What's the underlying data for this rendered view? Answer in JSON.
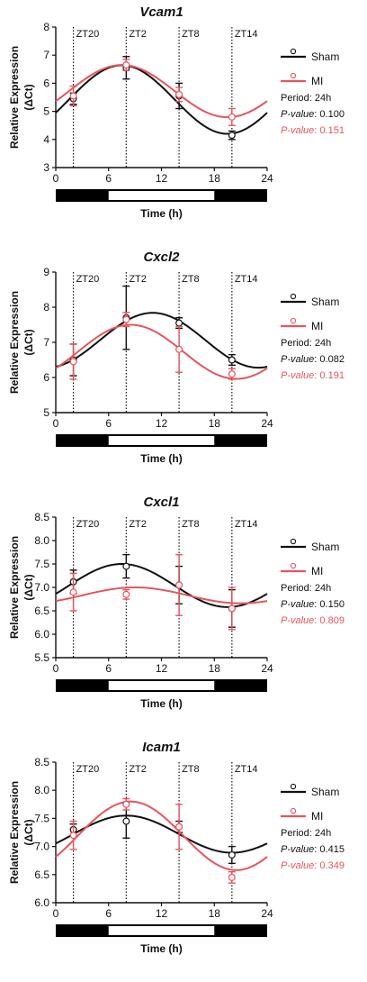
{
  "colors": {
    "sham": "#111111",
    "mi": "#e8545c",
    "axis": "#111111"
  },
  "chart_data": [
    {
      "type": "line",
      "title": "Vcam1",
      "xlabel": "Time (h)",
      "ylabel": "Relative Expression",
      "ylabel2": "(ΔCt)",
      "xlim": [
        0,
        24
      ],
      "ylim": [
        3,
        8
      ],
      "xticks": [
        0,
        6,
        12,
        18,
        24
      ],
      "yticks": [
        3,
        4,
        5,
        6,
        7,
        8
      ],
      "zt_lines": [
        {
          "x": 2,
          "label": "ZT20"
        },
        {
          "x": 8,
          "label": "ZT2"
        },
        {
          "x": 14,
          "label": "ZT8"
        },
        {
          "x": 20,
          "label": "ZT14"
        }
      ],
      "light_bar": [
        6,
        18
      ],
      "series": [
        {
          "name": "Sham",
          "x": [
            2,
            8,
            14,
            20
          ],
          "y": [
            5.45,
            6.55,
            5.55,
            4.15
          ],
          "err": [
            0.2,
            0.4,
            0.45,
            0.15
          ],
          "fit": {
            "mesor": 5.42,
            "amp": 1.22,
            "peak": 7.5
          }
        },
        {
          "name": "MI",
          "x": [
            2,
            8,
            14,
            20
          ],
          "y": [
            5.55,
            6.65,
            5.6,
            4.8
          ],
          "err": [
            0.35,
            0.2,
            0.25,
            0.3
          ],
          "fit": {
            "mesor": 5.72,
            "amp": 0.93,
            "peak": 7.5
          }
        }
      ],
      "stats": {
        "period": "Period: 24h",
        "p_sham_label": "P-value",
        "p_sham": ": 0.100",
        "p_mi_label": "P-value",
        "p_mi": ": 0.151"
      }
    },
    {
      "type": "line",
      "title": "Cxcl2",
      "xlabel": "Time (h)",
      "ylabel": "Relative Expression",
      "ylabel2": "(ΔCt)",
      "xlim": [
        0,
        24
      ],
      "ylim": [
        5,
        9
      ],
      "xticks": [
        0,
        6,
        12,
        18,
        24
      ],
      "yticks": [
        5,
        6,
        7,
        8,
        9
      ],
      "zt_lines": [
        {
          "x": 2,
          "label": "ZT20"
        },
        {
          "x": 8,
          "label": "ZT2"
        },
        {
          "x": 14,
          "label": "ZT8"
        },
        {
          "x": 20,
          "label": "ZT14"
        }
      ],
      "light_bar": [
        6,
        18
      ],
      "series": [
        {
          "name": "Sham",
          "x": [
            2,
            8,
            14,
            20
          ],
          "y": [
            6.5,
            7.7,
            7.55,
            6.5
          ],
          "err": [
            0.45,
            0.9,
            0.15,
            0.15
          ],
          "fit": {
            "mesor": 7.06,
            "amp": 0.78,
            "peak": 11
          }
        },
        {
          "name": "MI",
          "x": [
            2,
            8,
            14,
            20
          ],
          "y": [
            6.45,
            7.65,
            6.8,
            6.1
          ],
          "err": [
            0.5,
            0.2,
            0.65,
            0.15
          ],
          "fit": {
            "mesor": 6.73,
            "amp": 0.77,
            "peak": 8.5
          }
        }
      ],
      "stats": {
        "period": "Period: 24h",
        "p_sham_label": "P-value",
        "p_sham": ": 0.082",
        "p_mi_label": "P-value",
        "p_mi": ": 0.191"
      }
    },
    {
      "type": "line",
      "title": "Cxcl1",
      "xlabel": "Time (h)",
      "ylabel": "Relative Expression",
      "ylabel2": "(ΔCt)",
      "xlim": [
        0,
        24
      ],
      "ylim": [
        5.5,
        8.5
      ],
      "xticks": [
        0,
        6,
        12,
        18,
        24
      ],
      "yticks": [
        5.5,
        6.0,
        6.5,
        7.0,
        7.5,
        8.0,
        8.5
      ],
      "zt_lines": [
        {
          "x": 2,
          "label": "ZT20"
        },
        {
          "x": 8,
          "label": "ZT2"
        },
        {
          "x": 14,
          "label": "ZT8"
        },
        {
          "x": 20,
          "label": "ZT14"
        }
      ],
      "light_bar": [
        6,
        18
      ],
      "series": [
        {
          "name": "Sham",
          "x": [
            2,
            8,
            14,
            20
          ],
          "y": [
            7.12,
            7.45,
            7.05,
            6.55
          ],
          "err": [
            0.25,
            0.25,
            0.4,
            0.4
          ],
          "fit": {
            "mesor": 7.04,
            "amp": 0.46,
            "peak": 7.5
          }
        },
        {
          "name": "MI",
          "x": [
            2,
            8,
            14,
            20
          ],
          "y": [
            6.9,
            6.85,
            7.05,
            6.55
          ],
          "err": [
            0.4,
            0.1,
            0.65,
            0.45
          ],
          "fit": {
            "mesor": 6.83,
            "amp": 0.17,
            "peak": 9
          }
        }
      ],
      "stats": {
        "period": "Period: 24h",
        "p_sham_label": "P-value",
        "p_sham": ": 0.150",
        "p_mi_label": "P-value",
        "p_mi": ": 0.809"
      }
    },
    {
      "type": "line",
      "title": "Icam1",
      "xlabel": "Time (h)",
      "ylabel": "Relative Expression",
      "ylabel2": "(ΔCt)",
      "xlim": [
        0,
        24
      ],
      "ylim": [
        6.0,
        8.5
      ],
      "xticks": [
        0,
        6,
        12,
        18,
        24
      ],
      "yticks": [
        6.0,
        6.5,
        7.0,
        7.5,
        8.0,
        8.5
      ],
      "zt_lines": [
        {
          "x": 2,
          "label": "ZT20"
        },
        {
          "x": 8,
          "label": "ZT2"
        },
        {
          "x": 14,
          "label": "ZT8"
        },
        {
          "x": 20,
          "label": "ZT14"
        }
      ],
      "light_bar": [
        6,
        18
      ],
      "series": [
        {
          "name": "Sham",
          "x": [
            2,
            8,
            14,
            20
          ],
          "y": [
            7.3,
            7.45,
            7.35,
            6.85
          ],
          "err": [
            0.1,
            0.3,
            0.1,
            0.15
          ],
          "fit": {
            "mesor": 7.22,
            "amp": 0.33,
            "peak": 8
          }
        },
        {
          "name": "MI",
          "x": [
            2,
            8,
            14,
            20
          ],
          "y": [
            7.2,
            7.75,
            7.35,
            6.45
          ],
          "err": [
            0.25,
            0.1,
            0.4,
            0.1
          ],
          "fit": {
            "mesor": 7.19,
            "amp": 0.61,
            "peak": 8.5
          }
        }
      ],
      "stats": {
        "period": "Period: 24h",
        "p_sham_label": "P-value",
        "p_sham": ": 0.415",
        "p_mi_label": "P-value",
        "p_mi": ": 0.349"
      }
    }
  ]
}
